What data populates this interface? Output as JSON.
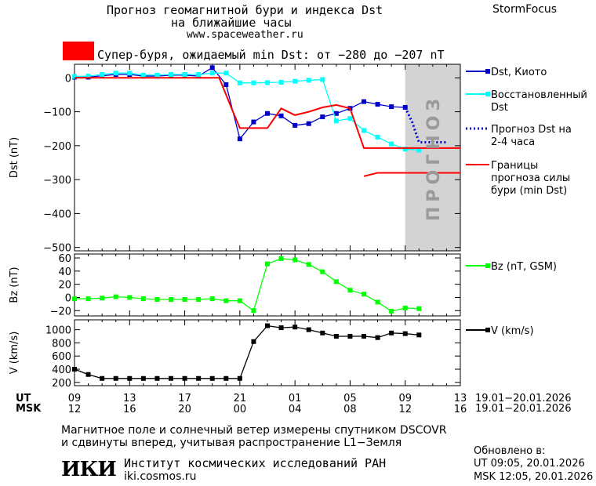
{
  "header": {
    "title_line1": "Прогноз геомагнитной бури и индекса Dst",
    "title_line2": "на ближайшие часы",
    "url": "www.spaceweather.ru",
    "brand": "StormFocus",
    "storm_label": "Супер-буря, ожидаемый min Dst: от −280 до −207 nT",
    "storm_color": "#ff0000"
  },
  "chart_data": [
    {
      "type": "line",
      "ylabel": "Dst (nT)",
      "ylim": [
        -510,
        40
      ],
      "yticks": [
        0,
        -100,
        -200,
        -300,
        -400,
        -500
      ],
      "ytick_labels": [
        "0",
        "−100",
        "−200",
        "−300",
        "−400",
        "−500"
      ],
      "forecast_band_label": "ПРОГНОЗ",
      "forecast_band_from": 24,
      "forecast_band_to": 28,
      "series": [
        {
          "name": "Dst, Киото",
          "color": "#0000cc",
          "marker": "square",
          "x": [
            0,
            1,
            2,
            3,
            4,
            5,
            6,
            7,
            8,
            9,
            10,
            11,
            12,
            13,
            14,
            15,
            16,
            17,
            18,
            19,
            20,
            21,
            22,
            23,
            24
          ],
          "y": [
            2,
            2,
            6,
            10,
            10,
            5,
            5,
            8,
            8,
            5,
            30,
            -20,
            -180,
            -130,
            -105,
            -112,
            -140,
            -135,
            -115,
            -105,
            -90,
            -70,
            -78,
            -85,
            -87
          ]
        },
        {
          "name": "Восстановленный Dst",
          "color": "#00ffff",
          "marker": "square",
          "x": [
            0,
            1,
            2,
            3,
            4,
            5,
            6,
            7,
            8,
            9,
            10,
            11,
            12,
            13,
            14,
            15,
            16,
            17,
            18,
            19,
            20,
            21,
            22,
            23,
            24,
            25
          ],
          "y": [
            4,
            5,
            10,
            14,
            14,
            8,
            8,
            10,
            10,
            10,
            14,
            14,
            -15,
            -15,
            -14,
            -13,
            -10,
            -7,
            -5,
            -127,
            -120,
            -155,
            -175,
            -195,
            -210,
            -213
          ]
        },
        {
          "name": "Прогноз Dst на 2-4 часа",
          "color": "#0000cc",
          "style": "dotted",
          "x": [
            24,
            24.5,
            25,
            26,
            27
          ],
          "y": [
            -87,
            -130,
            -190,
            -190,
            -190
          ]
        },
        {
          "name": "Границы прогноза силы бури (min Dst)",
          "color": "#ff0000",
          "x": [
            0,
            10.5,
            11,
            11.5,
            12,
            14,
            15,
            16,
            17,
            18,
            19,
            20,
            21,
            22,
            23,
            24,
            28
          ],
          "y": [
            0,
            0,
            -50,
            -100,
            -148,
            -148,
            -90,
            -110,
            -100,
            -87,
            -80,
            -90,
            -207,
            -207,
            -207,
            -207,
            -207
          ]
        },
        {
          "name": "",
          "color": "#ff0000",
          "x": [
            21,
            22,
            23,
            24,
            28
          ],
          "y": [
            -290,
            -280,
            -280,
            -280,
            -280
          ]
        }
      ]
    },
    {
      "type": "line",
      "ylabel": "Bz (nT)",
      "ylim": [
        -28,
        66
      ],
      "yticks": [
        60,
        40,
        20,
        0,
        -20
      ],
      "ytick_labels": [
        "60",
        "40",
        "20",
        "0",
        "−20"
      ],
      "series": [
        {
          "name": "Bz (nT, GSM)",
          "color": "#00ff00",
          "marker": "square",
          "x": [
            0,
            1,
            2,
            3,
            4,
            5,
            6,
            7,
            8,
            9,
            10,
            11,
            12,
            13,
            14,
            15,
            16,
            17,
            18,
            19,
            20,
            21,
            22,
            23,
            24,
            25
          ],
          "y": [
            -2,
            -2,
            -1,
            1,
            0,
            -2,
            -3,
            -3,
            -3,
            -3,
            -2,
            -5,
            -5,
            -20,
            51,
            59,
            57,
            50,
            39,
            24,
            11,
            5,
            -7,
            -21,
            -16,
            -17
          ]
        }
      ]
    },
    {
      "type": "line",
      "ylabel": "V (km/s)",
      "ylim": [
        150,
        1150
      ],
      "yticks": [
        1000,
        800,
        600,
        400,
        200
      ],
      "ytick_labels": [
        "1000",
        "800",
        "600",
        "400",
        "200"
      ],
      "series": [
        {
          "name": "V (km/s)",
          "color": "#000000",
          "marker": "square",
          "x": [
            0,
            1,
            2,
            3,
            4,
            5,
            6,
            7,
            8,
            9,
            10,
            11,
            12,
            13,
            14,
            15,
            16,
            17,
            18,
            19,
            20,
            21,
            22,
            23,
            24,
            25
          ],
          "y": [
            400,
            320,
            260,
            260,
            260,
            260,
            260,
            260,
            260,
            260,
            260,
            260,
            260,
            820,
            1060,
            1030,
            1040,
            1000,
            950,
            900,
            900,
            900,
            880,
            950,
            940,
            920
          ]
        }
      ]
    }
  ],
  "time_axis": {
    "xlim": [
      0,
      28
    ],
    "ut_label": "UT",
    "msk_label": "MSK",
    "ut_ticks": [
      "09",
      "13",
      "17",
      "21",
      "01",
      "05",
      "09",
      "13"
    ],
    "msk_ticks": [
      "12",
      "16",
      "20",
      "00",
      "04",
      "08",
      "12",
      "16"
    ],
    "ut_range": "19.01−20.01.2026",
    "msk_range": "19.01−20.01.2026"
  },
  "footer": {
    "note_line1": "Магнитное поле и солнечный ветер измерены спутником DSCOVR",
    "note_line2": "и сдвинуты вперед, учитывая распространение L1−Земля",
    "logo_text": "ИКИ",
    "institute": "Институт космических исследований РАН",
    "institute_url": "iki.cosmos.ru",
    "updated_label": "Обновлено в:",
    "updated_ut": "UT  09:05, 20.01.2026",
    "updated_msk": "MSK 12:05, 20.01.2026"
  }
}
